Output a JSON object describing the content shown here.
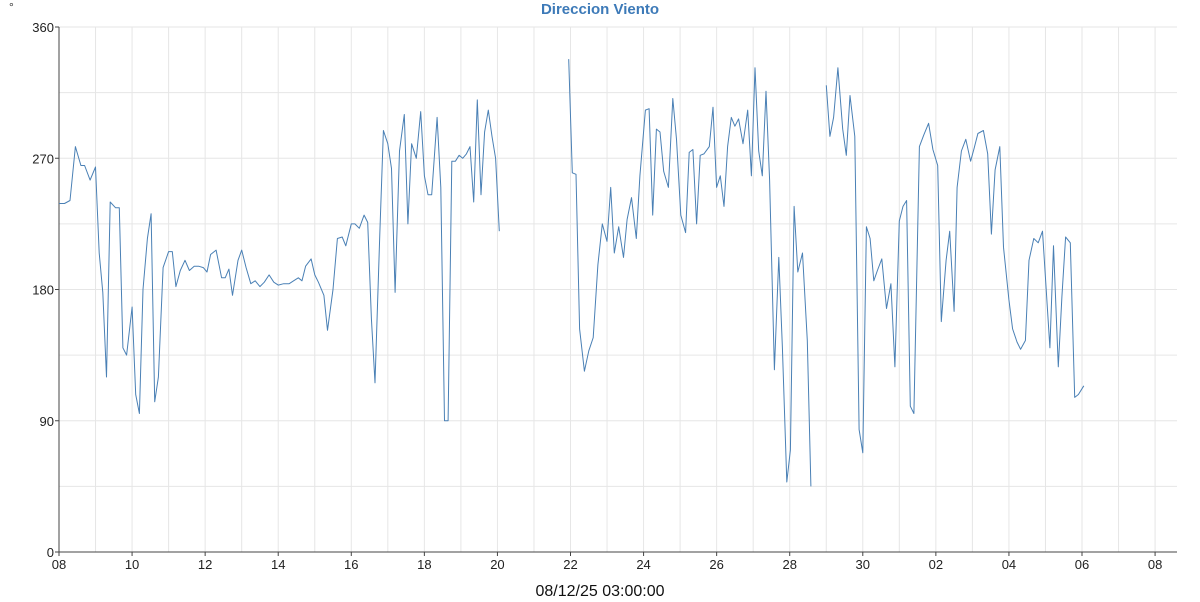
{
  "chart_data": {
    "type": "line",
    "title": "Direccion Viento",
    "y_unit": "°",
    "xlabel": "08/12/25 03:00:00",
    "ylabel": "",
    "ylim": [
      0,
      360
    ],
    "y_ticks": [
      0,
      90,
      180,
      270,
      360
    ],
    "x_range": [
      0,
      30
    ],
    "x_ticks": [
      {
        "x": 0,
        "label": "08"
      },
      {
        "x": 2,
        "label": "10"
      },
      {
        "x": 4,
        "label": "12"
      },
      {
        "x": 6,
        "label": "14"
      },
      {
        "x": 8,
        "label": "16"
      },
      {
        "x": 10,
        "label": "18"
      },
      {
        "x": 12,
        "label": "20"
      },
      {
        "x": 14,
        "label": "22"
      },
      {
        "x": 16,
        "label": "24"
      },
      {
        "x": 18,
        "label": "26"
      },
      {
        "x": 20,
        "label": "28"
      },
      {
        "x": 22,
        "label": "30"
      },
      {
        "x": 24,
        "label": "02"
      },
      {
        "x": 26,
        "label": "04"
      },
      {
        "x": 28,
        "label": "06"
      },
      {
        "x": 30,
        "label": "08"
      }
    ],
    "grid": true,
    "line_color": "#4a80b5",
    "series": [
      {
        "segments": [
          [
            [
              0.0,
              239
            ],
            [
              0.15,
              239
            ],
            [
              0.3,
              241
            ],
            [
              0.45,
              278
            ],
            [
              0.6,
              265
            ],
            [
              0.7,
              265
            ],
            [
              0.85,
              255
            ],
            [
              1.0,
              264
            ],
            [
              1.1,
              205
            ],
            [
              1.2,
              178
            ],
            [
              1.3,
              120
            ],
            [
              1.4,
              240
            ],
            [
              1.55,
              236
            ],
            [
              1.65,
              236
            ],
            [
              1.75,
              140
            ],
            [
              1.85,
              135
            ],
            [
              2.0,
              168
            ],
            [
              2.1,
              108
            ],
            [
              2.2,
              95
            ],
            [
              2.3,
              180
            ],
            [
              2.42,
              215
            ],
            [
              2.52,
              232
            ],
            [
              2.62,
              103
            ],
            [
              2.72,
              120
            ],
            [
              2.85,
              195
            ],
            [
              3.0,
              206
            ],
            [
              3.1,
              206
            ],
            [
              3.2,
              182
            ],
            [
              3.32,
              193
            ],
            [
              3.45,
              200
            ],
            [
              3.57,
              193
            ],
            [
              3.7,
              196
            ],
            [
              3.82,
              196
            ],
            [
              3.95,
              195
            ],
            [
              4.05,
              192
            ],
            [
              4.15,
              204
            ],
            [
              4.3,
              207
            ],
            [
              4.45,
              188
            ],
            [
              4.55,
              188
            ],
            [
              4.65,
              194
            ],
            [
              4.75,
              176
            ],
            [
              4.9,
              200
            ],
            [
              5.0,
              207
            ],
            [
              5.12,
              195
            ],
            [
              5.25,
              184
            ],
            [
              5.37,
              186
            ],
            [
              5.5,
              182
            ],
            [
              5.62,
              185
            ],
            [
              5.75,
              190
            ],
            [
              5.88,
              185
            ],
            [
              6.0,
              183
            ],
            [
              6.15,
              184
            ],
            [
              6.3,
              184
            ],
            [
              6.42,
              186
            ],
            [
              6.55,
              188
            ],
            [
              6.65,
              186
            ],
            [
              6.75,
              196
            ],
            [
              6.9,
              201
            ],
            [
              7.0,
              190
            ],
            [
              7.1,
              185
            ],
            [
              7.25,
              176
            ],
            [
              7.35,
              152
            ],
            [
              7.5,
              180
            ],
            [
              7.62,
              215
            ],
            [
              7.75,
              216
            ],
            [
              7.85,
              210
            ],
            [
              8.0,
              225
            ],
            [
              8.1,
              225
            ],
            [
              8.22,
              222
            ],
            [
              8.35,
              231
            ],
            [
              8.45,
              226
            ],
            [
              8.55,
              160
            ],
            [
              8.65,
              116
            ],
            [
              8.78,
              218
            ],
            [
              8.88,
              289
            ],
            [
              9.0,
              280
            ],
            [
              9.1,
              263
            ],
            [
              9.2,
              178
            ],
            [
              9.32,
              275
            ],
            [
              9.45,
              300
            ],
            [
              9.55,
              225
            ],
            [
              9.65,
              280
            ],
            [
              9.78,
              270
            ],
            [
              9.9,
              302
            ],
            [
              10.0,
              258
            ],
            [
              10.1,
              245
            ],
            [
              10.2,
              245
            ],
            [
              10.35,
              298
            ],
            [
              10.45,
              250
            ],
            [
              10.55,
              90
            ],
            [
              10.65,
              90
            ],
            [
              10.75,
              268
            ],
            [
              10.85,
              268
            ],
            [
              10.95,
              272
            ],
            [
              11.05,
              270
            ],
            [
              11.15,
              273
            ],
            [
              11.25,
              278
            ],
            [
              11.35,
              240
            ],
            [
              11.45,
              310
            ],
            [
              11.55,
              245
            ],
            [
              11.65,
              288
            ],
            [
              11.75,
              303
            ],
            [
              11.85,
              285
            ],
            [
              11.95,
              270
            ],
            [
              12.05,
              220
            ]
          ],
          [
            [
              13.95,
              338
            ],
            [
              14.05,
              260
            ],
            [
              14.15,
              259
            ],
            [
              14.25,
              153
            ],
            [
              14.38,
              124
            ],
            [
              14.5,
              138
            ],
            [
              14.62,
              147
            ],
            [
              14.75,
              197
            ],
            [
              14.87,
              225
            ],
            [
              15.0,
              213
            ],
            [
              15.1,
              250
            ],
            [
              15.2,
              205
            ],
            [
              15.32,
              223
            ],
            [
              15.45,
              202
            ],
            [
              15.55,
              228
            ],
            [
              15.67,
              243
            ],
            [
              15.8,
              215
            ],
            [
              15.9,
              258
            ],
            [
              16.05,
              303
            ],
            [
              16.15,
              304
            ],
            [
              16.25,
              231
            ],
            [
              16.35,
              290
            ],
            [
              16.45,
              288
            ],
            [
              16.55,
              261
            ],
            [
              16.68,
              250
            ],
            [
              16.8,
              311
            ],
            [
              16.9,
              283
            ],
            [
              17.02,
              231
            ],
            [
              17.15,
              219
            ],
            [
              17.25,
              274
            ],
            [
              17.35,
              276
            ],
            [
              17.45,
              225
            ],
            [
              17.55,
              272
            ],
            [
              17.65,
              273
            ],
            [
              17.8,
              278
            ],
            [
              17.9,
              305
            ],
            [
              18.0,
              250
            ],
            [
              18.1,
              258
            ],
            [
              18.2,
              237
            ],
            [
              18.3,
              278
            ],
            [
              18.4,
              298
            ],
            [
              18.5,
              292
            ],
            [
              18.6,
              297
            ],
            [
              18.72,
              280
            ],
            [
              18.85,
              303
            ],
            [
              18.95,
              258
            ],
            [
              19.05,
              332
            ],
            [
              19.15,
              275
            ],
            [
              19.25,
              258
            ],
            [
              19.35,
              316
            ],
            [
              19.45,
              255
            ],
            [
              19.58,
              125
            ],
            [
              19.7,
              202
            ],
            [
              19.8,
              140
            ],
            [
              19.92,
              48
            ],
            [
              20.02,
              70
            ],
            [
              20.12,
              237
            ],
            [
              20.22,
              192
            ],
            [
              20.35,
              205
            ],
            [
              20.48,
              145
            ],
            [
              20.58,
              45
            ]
          ],
          [
            [
              21.0,
              320
            ],
            [
              21.1,
              285
            ],
            [
              21.2,
              298
            ],
            [
              21.32,
              332
            ],
            [
              21.45,
              290
            ],
            [
              21.55,
              272
            ],
            [
              21.65,
              313
            ],
            [
              21.78,
              285
            ],
            [
              21.9,
              84
            ],
            [
              22.0,
              68
            ],
            [
              22.1,
              223
            ],
            [
              22.2,
              215
            ],
            [
              22.3,
              186
            ],
            [
              22.4,
              193
            ],
            [
              22.52,
              201
            ],
            [
              22.65,
              167
            ],
            [
              22.77,
              184
            ],
            [
              22.88,
              127
            ],
            [
              23.0,
              227
            ],
            [
              23.1,
              237
            ],
            [
              23.2,
              241
            ],
            [
              23.3,
              100
            ],
            [
              23.4,
              95
            ],
            [
              23.55,
              278
            ],
            [
              23.67,
              286
            ],
            [
              23.8,
              294
            ],
            [
              23.92,
              276
            ],
            [
              24.05,
              265
            ],
            [
              24.15,
              158
            ],
            [
              24.28,
              200
            ],
            [
              24.38,
              220
            ],
            [
              24.5,
              165
            ],
            [
              24.58,
              250
            ],
            [
              24.7,
              275
            ],
            [
              24.82,
              283
            ],
            [
              24.95,
              268
            ],
            [
              25.05,
              277
            ],
            [
              25.15,
              287
            ],
            [
              25.3,
              289
            ],
            [
              25.42,
              273
            ],
            [
              25.52,
              218
            ],
            [
              25.62,
              262
            ],
            [
              25.75,
              278
            ],
            [
              25.85,
              209
            ],
            [
              26.0,
              173
            ],
            [
              26.1,
              153
            ],
            [
              26.22,
              144
            ],
            [
              26.32,
              139
            ],
            [
              26.45,
              145
            ],
            [
              26.55,
              200
            ],
            [
              26.68,
              215
            ],
            [
              26.8,
              212
            ],
            [
              26.92,
              220
            ],
            [
              27.02,
              180
            ],
            [
              27.12,
              140
            ],
            [
              27.22,
              210
            ],
            [
              27.35,
              127
            ],
            [
              27.45,
              175
            ],
            [
              27.55,
              216
            ],
            [
              27.68,
              212
            ],
            [
              27.8,
              106
            ],
            [
              27.9,
              108
            ],
            [
              28.05,
              114
            ]
          ]
        ]
      }
    ]
  }
}
